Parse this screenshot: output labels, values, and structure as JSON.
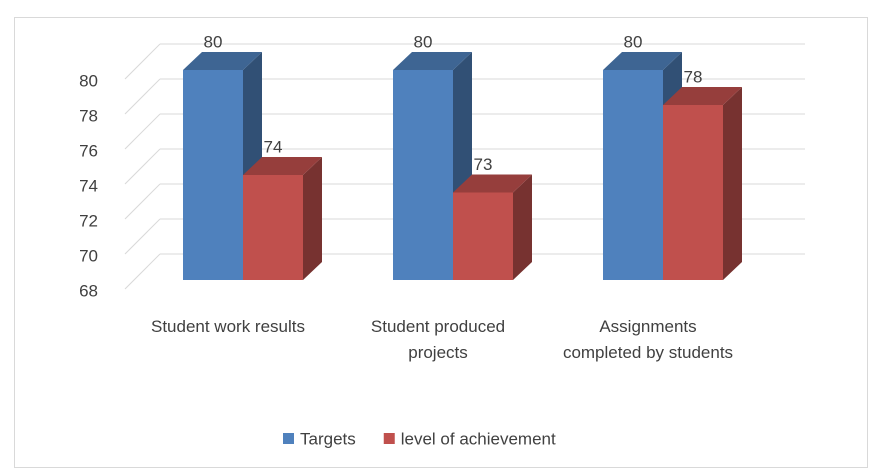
{
  "chart_data": {
    "type": "bar3d",
    "categories": [
      "Student work results",
      "Student produced projects",
      "Assignments completed by students"
    ],
    "series": [
      {
        "name": "Targets",
        "color": "#4f81bd",
        "values": [
          80,
          80,
          80
        ]
      },
      {
        "name": "level of achievement",
        "color": "#c0504d",
        "values": [
          74,
          73,
          78
        ]
      }
    ],
    "ylim": [
      68,
      80
    ],
    "yticks": [
      68,
      70,
      72,
      74,
      76,
      78,
      80
    ],
    "grid": true,
    "legend": "bottom"
  }
}
